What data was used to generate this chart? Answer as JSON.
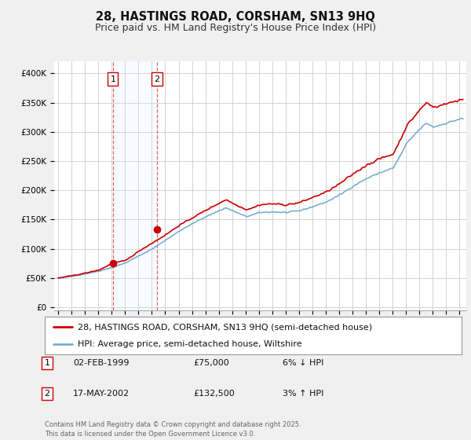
{
  "title": "28, HASTINGS ROAD, CORSHAM, SN13 9HQ",
  "subtitle": "Price paid vs. HM Land Registry's House Price Index (HPI)",
  "ylabel_values": [
    0,
    50000,
    100000,
    150000,
    200000,
    250000,
    300000,
    350000,
    400000
  ],
  "ylim": [
    -5000,
    420000
  ],
  "xlim_left": 1994.7,
  "xlim_right": 2025.5,
  "purchase1_x": 1999.09,
  "purchase1_y": 75000,
  "purchase2_x": 2002.38,
  "purchase2_y": 132500,
  "purchase1_date": "02-FEB-1999",
  "purchase1_price": "£75,000",
  "purchase1_hpi": "6% ↓ HPI",
  "purchase2_date": "17-MAY-2002",
  "purchase2_price": "£132,500",
  "purchase2_hpi": "3% ↑ HPI",
  "legend_line1": "28, HASTINGS ROAD, CORSHAM, SN13 9HQ (semi-detached house)",
  "legend_line2": "HPI: Average price, semi-detached house, Wiltshire",
  "footnote": "Contains HM Land Registry data © Crown copyright and database right 2025.\nThis data is licensed under the Open Government Licence v3.0.",
  "bg_color": "#f0f0f0",
  "plot_bg_color": "#ffffff",
  "grid_color": "#cccccc",
  "hpi_color": "#7aadd4",
  "price_color": "#cc0000",
  "vline_color": "#dd4444",
  "vshade_color": "#ddeeff",
  "title_fontsize": 10.5,
  "subtitle_fontsize": 9,
  "tick_fontsize": 7.5,
  "legend_fontsize": 8,
  "table_fontsize": 8
}
